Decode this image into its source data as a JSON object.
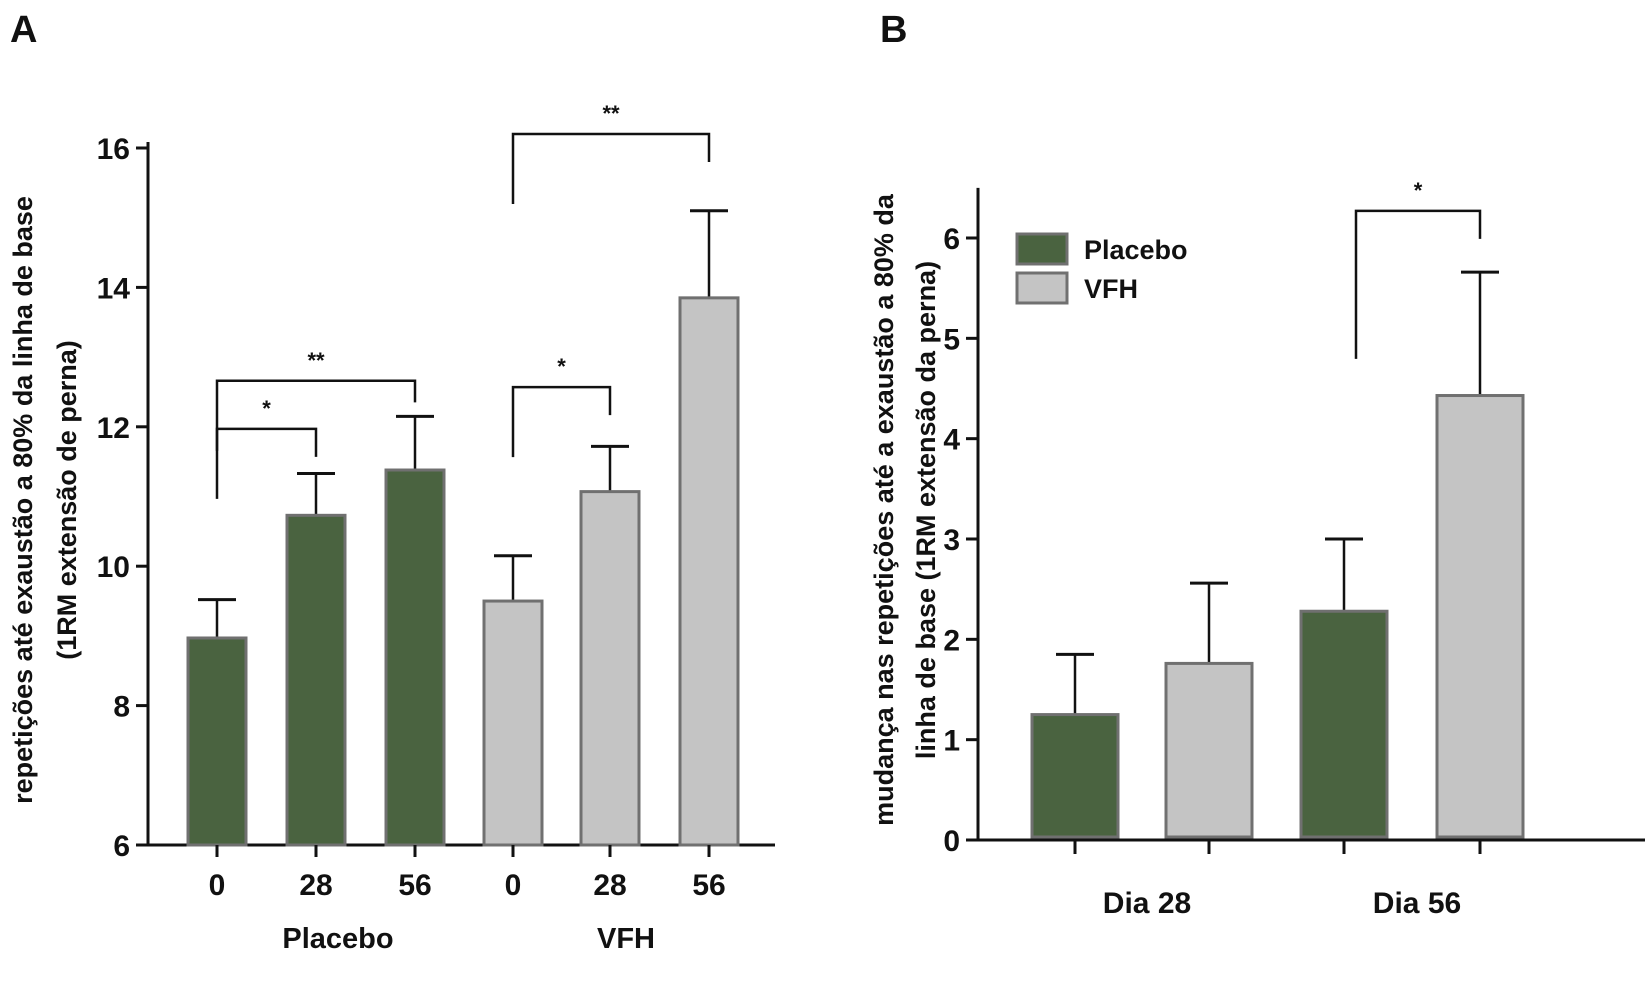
{
  "colors": {
    "placebo": "#4a6340",
    "vfh": "#c4c4c4",
    "bar_edge": "#707070",
    "axis": "#111111"
  },
  "chart_data": [
    {
      "panel": "A",
      "type": "bar",
      "ylabel_lines": [
        "repetições  até exaustão a 80% da linha de base",
        "(1RM extensão de perna)"
      ],
      "ylim": [
        6,
        16
      ],
      "yticks": [
        6,
        8,
        10,
        12,
        14,
        16
      ],
      "groups": [
        {
          "name": "Placebo",
          "color_key": "placebo",
          "categories": [
            "0",
            "28",
            "56"
          ],
          "values": [
            8.97,
            10.73,
            11.38
          ],
          "errors": [
            0.55,
            0.6,
            0.77
          ]
        },
        {
          "name": "VFH",
          "color_key": "vfh",
          "categories": [
            "0",
            "28",
            "56"
          ],
          "values": [
            9.5,
            11.07,
            13.85
          ],
          "errors": [
            0.65,
            0.65,
            1.25
          ]
        }
      ],
      "significance": [
        {
          "from": 0,
          "to": 1,
          "label": "*",
          "y": 11.97
        },
        {
          "from": 0,
          "to": 2,
          "label": "**",
          "y": 12.66
        },
        {
          "from": 3,
          "to": 4,
          "label": "*",
          "y": 12.57
        },
        {
          "from": 3,
          "to": 5,
          "label": "**",
          "y": 16.2
        }
      ],
      "grid": false
    },
    {
      "panel": "B",
      "type": "bar",
      "ylabel_lines": [
        "mudança nas repetições até a exaustão a 80% da",
        "linha de base (1RM extensão da perna)"
      ],
      "ylim": [
        0,
        6.5
      ],
      "yticks": [
        0,
        1,
        2,
        3,
        4,
        5,
        6
      ],
      "categories": [
        "Dia 28",
        "Dia 56"
      ],
      "series": [
        {
          "name": "Placebo",
          "color_key": "placebo",
          "values": [
            1.25,
            2.28
          ],
          "errors": [
            0.6,
            0.72
          ]
        },
        {
          "name": "VFH",
          "color_key": "vfh",
          "values": [
            1.76,
            4.43
          ],
          "errors": [
            0.8,
            1.23
          ]
        }
      ],
      "significance": [
        {
          "from": 2,
          "to": 3,
          "label": "*",
          "y": 6.27
        }
      ],
      "legend": {
        "placement": "top-left",
        "entries": [
          "Placebo",
          "VFH"
        ]
      },
      "grid": false
    }
  ]
}
